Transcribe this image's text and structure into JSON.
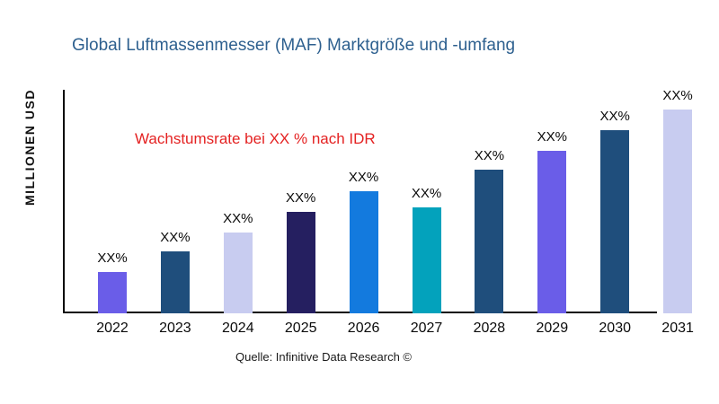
{
  "chart_data": {
    "type": "bar",
    "title": "Global Luftmassenmesser (MAF) Marktgröße und -umfang",
    "ylabel": "MILLIONEN USD",
    "xlabel": "",
    "annotation": "Wachstumsrate bei XX % nach IDR",
    "source": "Quelle: Infinitive Data Research ©",
    "categories": [
      "2022",
      "2023",
      "2024",
      "2025",
      "2026",
      "2027",
      "2028",
      "2029",
      "2030",
      "2031"
    ],
    "values": [
      46,
      69,
      90,
      113,
      136,
      118,
      160,
      181,
      204,
      227
    ],
    "bar_labels": [
      "XX%",
      "XX%",
      "XX%",
      "XX%",
      "XX%",
      "XX%",
      "XX%",
      "XX%",
      "XX%",
      "XX%"
    ],
    "bar_colors": [
      "#6a5de8",
      "#1f4e7c",
      "#c8ccf0",
      "#251f60",
      "#137ade",
      "#03a2bc",
      "#1f4e7c",
      "#6a5de8",
      "#1f4e7c",
      "#c8ccf0"
    ],
    "ylim": [
      0,
      249
    ],
    "grid": false,
    "legend": null,
    "colors": {
      "title": "#2e608f",
      "annotation": "#e42222",
      "axis": "#0a0a0a",
      "text": "#0a0a0a",
      "background": "#ffffff"
    }
  }
}
